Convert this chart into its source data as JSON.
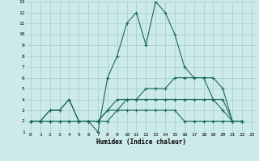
{
  "xlabel": "Humidex (Indice chaleur)",
  "bg_color": "#cdeaea",
  "grid_color": "#a8d0d0",
  "line_color": "#1a6b5a",
  "xlim": [
    -0.5,
    23.5
  ],
  "ylim": [
    1,
    13
  ],
  "xticks": [
    0,
    1,
    2,
    3,
    4,
    5,
    6,
    7,
    8,
    9,
    10,
    11,
    12,
    13,
    14,
    15,
    16,
    17,
    18,
    19,
    20,
    21,
    22,
    23
  ],
  "yticks": [
    1,
    2,
    3,
    4,
    5,
    6,
    7,
    8,
    9,
    10,
    11,
    12,
    13
  ],
  "series": [
    [
      2,
      2,
      3,
      3,
      4,
      2,
      2,
      1,
      6,
      8,
      11,
      12,
      9,
      13,
      12,
      10,
      7,
      6,
      6,
      4,
      3,
      2,
      2
    ],
    [
      2,
      2,
      3,
      3,
      4,
      2,
      2,
      2,
      3,
      4,
      4,
      4,
      5,
      5,
      5,
      6,
      6,
      6,
      6,
      6,
      5,
      2,
      2
    ],
    [
      2,
      2,
      2,
      2,
      2,
      2,
      2,
      2,
      2,
      3,
      3,
      3,
      3,
      3,
      3,
      3,
      2,
      2,
      2,
      2,
      2,
      2,
      2
    ],
    [
      2,
      2,
      2,
      2,
      2,
      2,
      2,
      2,
      3,
      3,
      4,
      4,
      4,
      4,
      4,
      4,
      4,
      4,
      4,
      4,
      4,
      2,
      2
    ]
  ],
  "x": [
    0,
    1,
    2,
    3,
    4,
    5,
    6,
    7,
    8,
    9,
    10,
    11,
    12,
    13,
    14,
    15,
    16,
    17,
    18,
    19,
    20,
    21,
    22
  ]
}
